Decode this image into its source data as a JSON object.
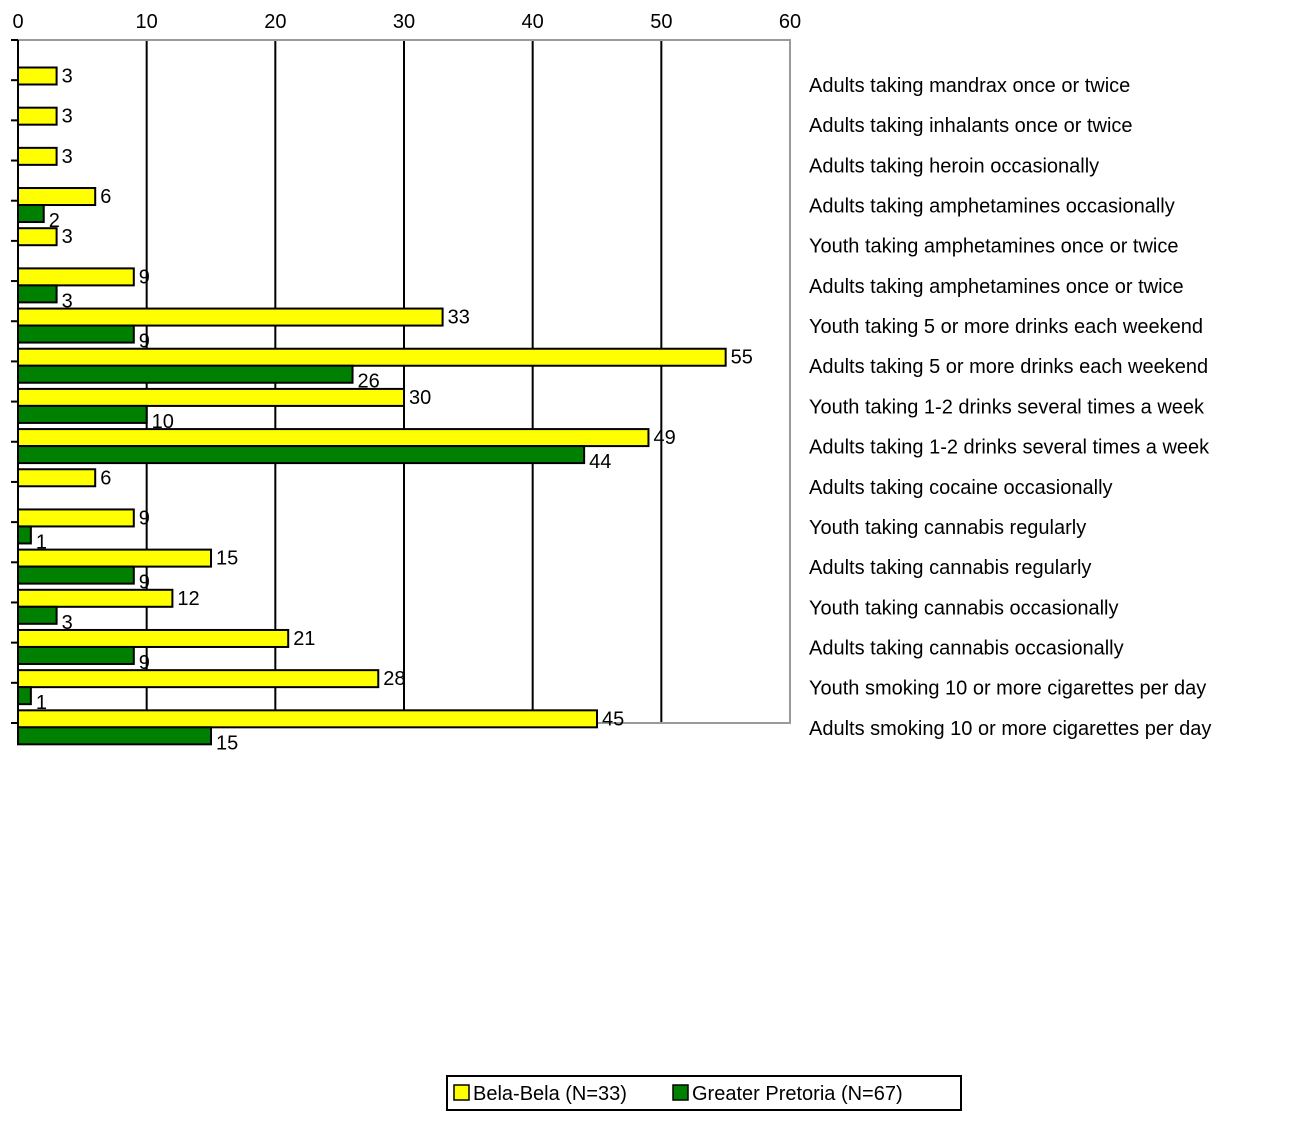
{
  "chart_data": {
    "type": "bar",
    "orientation": "horizontal",
    "xlim": [
      0,
      60
    ],
    "x_ticks": [
      0,
      10,
      20,
      30,
      40,
      50,
      60
    ],
    "x_axis_position": "top",
    "grid": true,
    "categories": [
      "Adults taking mandrax once or twice",
      "Adults taking inhalants once or twice",
      "Adults taking heroin occasionally",
      "Adults taking amphetamines occasionally",
      "Youth taking amphetamines once or twice",
      "Adults taking amphetamines once or twice",
      "Youth taking 5 or more drinks each weekend",
      "Adults taking 5 or more drinks each weekend",
      "Youth taking 1-2 drinks several times a week",
      "Adults taking 1-2 drinks several times a week",
      "Adults taking cocaine occasionally",
      "Youth taking cannabis regularly",
      "Adults taking cannabis regularly",
      "Youth taking cannabis occasionally",
      "Adults taking cannabis occasionally",
      "Youth smoking 10 or more cigarettes per day",
      "Adults smoking 10 or more cigarettes per day"
    ],
    "series": [
      {
        "name": "Bela-Bela (N=33)",
        "color": "#ffff00",
        "values": [
          3,
          3,
          3,
          6,
          3,
          9,
          33,
          55,
          30,
          49,
          6,
          9,
          15,
          12,
          21,
          28,
          45
        ]
      },
      {
        "name": "Greater Pretoria (N=67)",
        "color": "#008000",
        "values": [
          null,
          null,
          null,
          2,
          null,
          3,
          9,
          26,
          10,
          44,
          null,
          1,
          9,
          3,
          9,
          1,
          15
        ]
      }
    ],
    "legend_position": "bottom-center"
  }
}
